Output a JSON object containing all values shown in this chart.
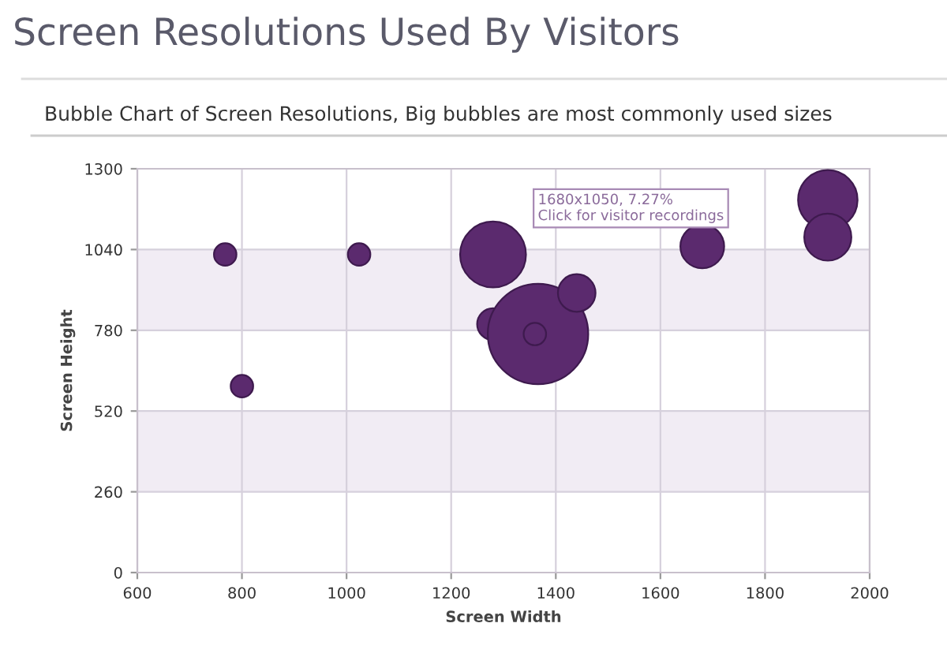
{
  "chart_data": {
    "type": "bubble",
    "title": "Screen Resolutions Used By Visitors",
    "subtitle": "Bubble Chart of Screen Resolutions, Big bubbles are most commonly used sizes",
    "xlabel": "Screen Width",
    "ylabel": "Screen Height",
    "x": [
      768,
      1024,
      800,
      1280,
      1280,
      1366,
      1360,
      1440,
      1680,
      1920,
      1920
    ],
    "values": [
      1024,
      1024,
      600,
      1024,
      800,
      768,
      768,
      900,
      1050,
      1200,
      1080
    ],
    "sizes": [
      0.05,
      0.05,
      0.05,
      0.43,
      0.1,
      1.0,
      0.05,
      0.14,
      0.19,
      0.35,
      0.22
    ],
    "color": "#5b2a6e",
    "xlim": [
      600,
      2000
    ],
    "xticks": [
      600,
      800,
      1000,
      1200,
      1400,
      1600,
      1800,
      2000
    ],
    "ylim": [
      0,
      1300
    ],
    "yticks": [
      0,
      260,
      520,
      780,
      1040,
      1300
    ],
    "grid": true,
    "bands": [
      {
        "axis": "y",
        "from": 260,
        "to": 520,
        "color": "#f1ecf4"
      },
      {
        "axis": "y",
        "from": 780,
        "to": 1040,
        "color": "#f1ecf4"
      }
    ],
    "annotations": [
      {
        "text": "1680x1050, 7.27%\nClick for visitor recordings",
        "x": 1680,
        "y": 1050
      }
    ]
  }
}
